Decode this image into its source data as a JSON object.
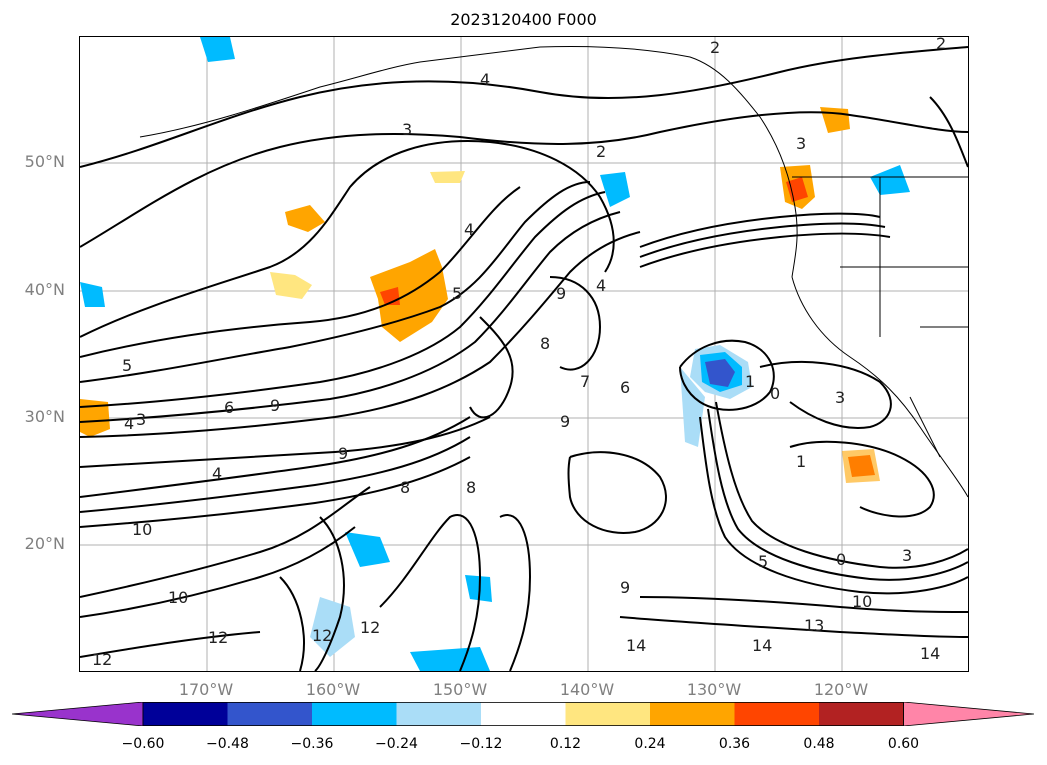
{
  "title": "2023120400 F000",
  "lat_labels": [
    "50°N",
    "40°N",
    "30°N",
    "20°N"
  ],
  "lon_labels": [
    "170°W",
    "160°W",
    "150°W",
    "140°W",
    "130°W",
    "120°W"
  ],
  "colorbar": {
    "ticks": [
      "−0.60",
      "−0.48",
      "−0.36",
      "−0.24",
      "−0.12",
      "0.12",
      "0.24",
      "0.36",
      "0.48",
      "0.60"
    ],
    "colors": [
      "#9933cc",
      "#000099",
      "#3355cc",
      "#00bbff",
      "#aaddf7",
      "#ffffff",
      "#ffe680",
      "#ffa500",
      "#ff4500",
      "#b22222",
      "#ff85a8"
    ]
  },
  "contour_labels": [
    {
      "text": "2"
    },
    {
      "text": "2"
    },
    {
      "text": "4"
    },
    {
      "text": "3"
    },
    {
      "text": "2"
    },
    {
      "text": "3"
    },
    {
      "text": "4"
    },
    {
      "text": "5"
    },
    {
      "text": "9"
    },
    {
      "text": "4"
    },
    {
      "text": "8"
    },
    {
      "text": "5"
    },
    {
      "text": "6"
    },
    {
      "text": "9"
    },
    {
      "text": "1"
    },
    {
      "text": "6"
    },
    {
      "text": "3"
    },
    {
      "text": "4"
    },
    {
      "text": "3"
    },
    {
      "text": "4"
    },
    {
      "text": "9"
    },
    {
      "text": "8"
    },
    {
      "text": "8"
    },
    {
      "text": "10"
    },
    {
      "text": "10"
    },
    {
      "text": "12"
    },
    {
      "text": "12"
    },
    {
      "text": "12"
    },
    {
      "text": "9"
    },
    {
      "text": "14"
    },
    {
      "text": "14"
    },
    {
      "text": "13"
    },
    {
      "text": "10"
    },
    {
      "text": "14"
    },
    {
      "text": "0"
    },
    {
      "text": "3"
    },
    {
      "text": "1"
    },
    {
      "text": "0"
    },
    {
      "text": "5"
    },
    {
      "text": "9"
    },
    {
      "text": "7"
    },
    {
      "text": "12"
    }
  ]
}
